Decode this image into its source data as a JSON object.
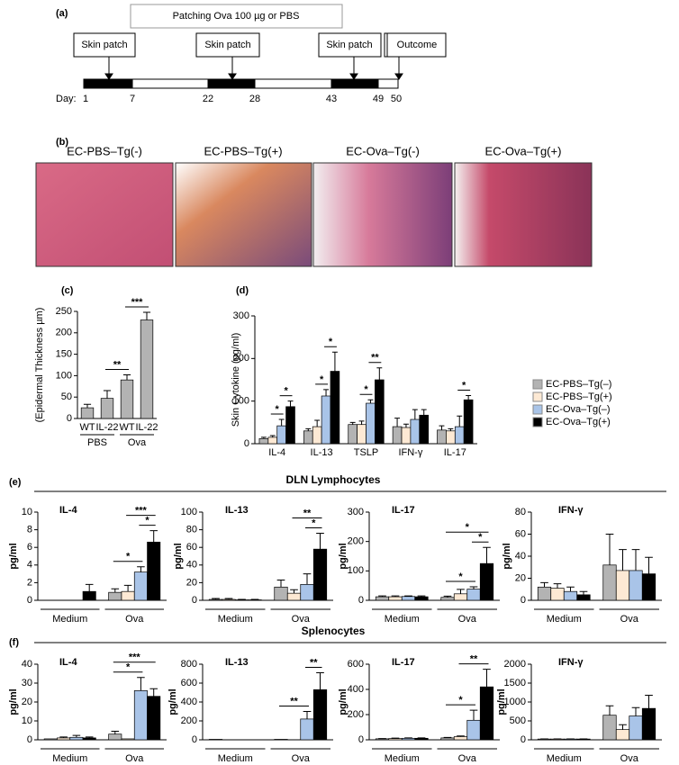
{
  "panel_a": {
    "label": "(a)",
    "banner": "Patching Ova 100 µg or PBS",
    "boxes": [
      "Skin patch",
      "Skin patch",
      "Skin patch",
      "Outcome"
    ],
    "day_label": "Day:",
    "days": [
      "1",
      "7",
      "22",
      "28",
      "43",
      "49",
      "50"
    ]
  },
  "panel_b": {
    "label": "(b)",
    "images": [
      "EC-PBS–Tg(-)",
      "EC-PBS–Tg(+)",
      "EC-Ova–Tg(-)",
      "EC-Ova–Tg(+)"
    ]
  },
  "section_e": {
    "label": "(e)",
    "title": "DLN Lymphocytes"
  },
  "section_f": {
    "label": "(f)",
    "title": "Splenocytes"
  },
  "chart_data": [
    {
      "type": "bar",
      "panel": "(c)",
      "y_label": "(Epidermal Thickness µm)",
      "categories": [
        "WT",
        "IL-22",
        "WT",
        "IL-22"
      ],
      "groups": [
        "PBS",
        "Ova"
      ],
      "values": [
        25,
        47,
        90,
        230
      ],
      "errors": [
        8,
        18,
        12,
        18
      ],
      "color": "#b3b3b3",
      "ylim": [
        0,
        250
      ],
      "yticks": [
        0,
        50,
        100,
        150,
        200,
        250
      ],
      "comparisons": [
        {
          "label": "**",
          "bars": [
            1,
            2
          ]
        },
        {
          "label": "***",
          "bars": [
            2,
            3
          ]
        }
      ]
    },
    {
      "type": "bar",
      "panel": "(d)",
      "y_label": "Skin Cytokine (pg/ml)",
      "categories": [
        "IL-4",
        "IL-13",
        "TSLP",
        "IFN-γ",
        "IL-17"
      ],
      "ylim": [
        0,
        300
      ],
      "yticks": [
        0,
        100,
        200,
        300
      ],
      "legend": "right",
      "series": [
        {
          "name": "EC-PBS–Tg(–)",
          "color": "#b3b3b3",
          "values": [
            12,
            30,
            45,
            40,
            32
          ],
          "errors": [
            3,
            5,
            5,
            20,
            10
          ]
        },
        {
          "name": "EC-PBS–Tg(+)",
          "color": "#fde9d4",
          "values": [
            15,
            40,
            45,
            38,
            30
          ],
          "errors": [
            4,
            15,
            8,
            8,
            5
          ]
        },
        {
          "name": "EC-Ova–Tg(–)",
          "color": "#a9c4e8",
          "values": [
            42,
            112,
            95,
            57,
            40
          ],
          "errors": [
            15,
            15,
            8,
            23,
            25
          ]
        },
        {
          "name": "EC-Ova–Tg(+)",
          "color": "#000000",
          "values": [
            87,
            170,
            150,
            67,
            103
          ],
          "errors": [
            13,
            45,
            28,
            13,
            10
          ]
        }
      ],
      "comparisons": [
        {
          "label": "*",
          "category": 0,
          "bars": [
            1,
            2
          ]
        },
        {
          "label": "*",
          "category": 0,
          "bars": [
            2,
            3
          ]
        },
        {
          "label": "*",
          "category": 1,
          "bars": [
            1,
            2
          ]
        },
        {
          "label": "*",
          "category": 1,
          "bars": [
            2,
            3
          ]
        },
        {
          "label": "*",
          "category": 2,
          "bars": [
            1,
            2
          ]
        },
        {
          "label": "**",
          "category": 2,
          "bars": [
            2,
            3
          ]
        },
        {
          "label": "*",
          "category": 4,
          "bars": [
            2,
            3
          ]
        }
      ]
    },
    {
      "type": "bar",
      "title": "IL-4",
      "y_label": "pg/ml",
      "categories": [
        "Medium",
        "Ova"
      ],
      "ylim": [
        0,
        10
      ],
      "yticks": [
        0,
        2,
        4,
        6,
        8,
        10
      ],
      "series": [
        {
          "color": "#b3b3b3",
          "values": [
            0,
            0.9
          ],
          "errors": [
            null,
            0.4
          ]
        },
        {
          "color": "#fde9d4",
          "values": [
            0,
            1.0
          ],
          "errors": [
            null,
            0.7
          ]
        },
        {
          "color": "#a9c4e8",
          "values": [
            0,
            3.2
          ],
          "errors": [
            null,
            0.6
          ]
        },
        {
          "color": "#000000",
          "values": [
            1.0,
            6.6
          ],
          "errors": [
            0.8,
            1.3
          ]
        }
      ],
      "comparisons": [
        {
          "label": "*",
          "category": 1,
          "bars": [
            0,
            2
          ]
        },
        {
          "label": "*",
          "category": 1,
          "bars": [
            2,
            3
          ]
        },
        {
          "label": "***",
          "category": 1,
          "bars": [
            1,
            3
          ]
        }
      ]
    },
    {
      "type": "bar",
      "title": "IL-13",
      "y_label": "pg/ml",
      "categories": [
        "Medium",
        "Ova"
      ],
      "ylim": [
        0,
        100
      ],
      "yticks": [
        0,
        20,
        40,
        60,
        80,
        100
      ],
      "series": [
        {
          "color": "#b3b3b3",
          "values": [
            1,
            15
          ],
          "errors": [
            1,
            8
          ]
        },
        {
          "color": "#fde9d4",
          "values": [
            1,
            8
          ],
          "errors": [
            1,
            4
          ]
        },
        {
          "color": "#a9c4e8",
          "values": [
            0.5,
            18
          ],
          "errors": [
            0.5,
            12
          ]
        },
        {
          "color": "#000000",
          "values": [
            0.5,
            58
          ],
          "errors": [
            0.5,
            18
          ]
        }
      ],
      "comparisons": [
        {
          "label": "*",
          "category": 1,
          "bars": [
            2,
            3
          ]
        },
        {
          "label": "**",
          "category": 1,
          "bars": [
            1,
            3
          ]
        }
      ]
    },
    {
      "type": "bar",
      "title": "IL-17",
      "y_label": "pg/ml",
      "categories": [
        "Medium",
        "Ova"
      ],
      "ylim": [
        0,
        300
      ],
      "yticks": [
        0,
        100,
        200,
        300
      ],
      "series": [
        {
          "color": "#b3b3b3",
          "values": [
            12,
            10
          ],
          "errors": [
            3,
            4
          ]
        },
        {
          "color": "#fde9d4",
          "values": [
            12,
            22
          ],
          "errors": [
            3,
            15
          ]
        },
        {
          "color": "#a9c4e8",
          "values": [
            13,
            38
          ],
          "errors": [
            2,
            8
          ]
        },
        {
          "color": "#000000",
          "values": [
            12,
            125
          ],
          "errors": [
            3,
            55
          ]
        }
      ],
      "comparisons": [
        {
          "label": "*",
          "category": 1,
          "bars": [
            0,
            2
          ]
        },
        {
          "label": "*",
          "category": 1,
          "bars": [
            2,
            3
          ]
        },
        {
          "label": "*",
          "category": 1,
          "bars": [
            0,
            3
          ]
        }
      ]
    },
    {
      "type": "bar",
      "title": "IFN-γ",
      "y_label": "pg/ml",
      "categories": [
        "Medium",
        "Ova"
      ],
      "ylim": [
        0,
        80
      ],
      "yticks": [
        0,
        20,
        40,
        60,
        80
      ],
      "series": [
        {
          "color": "#b3b3b3",
          "values": [
            12,
            32
          ],
          "errors": [
            4,
            28
          ]
        },
        {
          "color": "#fde9d4",
          "values": [
            11,
            27
          ],
          "errors": [
            4,
            19
          ]
        },
        {
          "color": "#a9c4e8",
          "values": [
            8,
            27
          ],
          "errors": [
            4,
            19
          ]
        },
        {
          "color": "#000000",
          "values": [
            5,
            24
          ],
          "errors": [
            3,
            15
          ]
        }
      ],
      "comparisons": []
    },
    {
      "type": "bar",
      "title": "IL-4",
      "y_label": "pg/ml",
      "categories": [
        "Medium",
        "Ova"
      ],
      "ylim": [
        0,
        40
      ],
      "yticks": [
        0,
        10,
        20,
        30,
        40
      ],
      "series": [
        {
          "color": "#b3b3b3",
          "values": [
            0.5,
            3
          ],
          "errors": [
            null,
            1.5
          ]
        },
        {
          "color": "#fde9d4",
          "values": [
            1,
            0.5
          ],
          "errors": [
            0.5,
            null
          ]
        },
        {
          "color": "#a9c4e8",
          "values": [
            1.3,
            26
          ],
          "errors": [
            1,
            7
          ]
        },
        {
          "color": "#000000",
          "values": [
            1,
            23
          ],
          "errors": [
            0.5,
            4
          ]
        }
      ],
      "comparisons": [
        {
          "label": "*",
          "category": 1,
          "bars": [
            0,
            2
          ]
        },
        {
          "label": "***",
          "category": 1,
          "bars": [
            0,
            3
          ]
        }
      ]
    },
    {
      "type": "bar",
      "title": "IL-13",
      "y_label": "pg/ml",
      "categories": [
        "Medium",
        "Ova"
      ],
      "ylim": [
        0,
        800
      ],
      "yticks": [
        0,
        200,
        400,
        600,
        800
      ],
      "series": [
        {
          "color": "#b3b3b3",
          "values": [
            5,
            5
          ],
          "errors": [
            null,
            null
          ]
        },
        {
          "color": "#fde9d4",
          "values": [
            0,
            0
          ],
          "errors": [
            null,
            null
          ]
        },
        {
          "color": "#a9c4e8",
          "values": [
            0,
            220
          ],
          "errors": [
            null,
            80
          ]
        },
        {
          "color": "#000000",
          "values": [
            0,
            530
          ],
          "errors": [
            null,
            180
          ]
        }
      ],
      "comparisons": [
        {
          "label": "**",
          "category": 1,
          "bars": [
            0,
            2
          ]
        },
        {
          "label": "**",
          "category": 1,
          "bars": [
            2,
            3
          ]
        }
      ]
    },
    {
      "type": "bar",
      "title": "IL-17",
      "y_label": "pg/ml",
      "categories": [
        "Medium",
        "Ova"
      ],
      "ylim": [
        0,
        600
      ],
      "yticks": [
        0,
        200,
        400,
        600
      ],
      "series": [
        {
          "color": "#b3b3b3",
          "values": [
            8,
            15
          ],
          "errors": [
            2,
            4
          ]
        },
        {
          "color": "#fde9d4",
          "values": [
            10,
            25
          ],
          "errors": [
            3,
            5
          ]
        },
        {
          "color": "#a9c4e8",
          "values": [
            12,
            155
          ],
          "errors": [
            3,
            80
          ]
        },
        {
          "color": "#000000",
          "values": [
            12,
            420
          ],
          "errors": [
            3,
            140
          ]
        }
      ],
      "comparisons": [
        {
          "label": "*",
          "category": 1,
          "bars": [
            0,
            2
          ]
        },
        {
          "label": "**",
          "category": 1,
          "bars": [
            1,
            3
          ]
        }
      ]
    },
    {
      "type": "bar",
      "title": "IFN-γ",
      "y_label": "pg/ml",
      "categories": [
        "Medium",
        "Ova"
      ],
      "ylim": [
        0,
        2000
      ],
      "yticks": [
        0,
        500,
        1000,
        1500,
        2000
      ],
      "series": [
        {
          "color": "#b3b3b3",
          "values": [
            20,
            650
          ],
          "errors": [
            5,
            250
          ]
        },
        {
          "color": "#fde9d4",
          "values": [
            20,
            270
          ],
          "errors": [
            5,
            130
          ]
        },
        {
          "color": "#a9c4e8",
          "values": [
            20,
            630
          ],
          "errors": [
            5,
            220
          ]
        },
        {
          "color": "#000000",
          "values": [
            20,
            830
          ],
          "errors": [
            5,
            350
          ]
        }
      ],
      "comparisons": []
    }
  ]
}
